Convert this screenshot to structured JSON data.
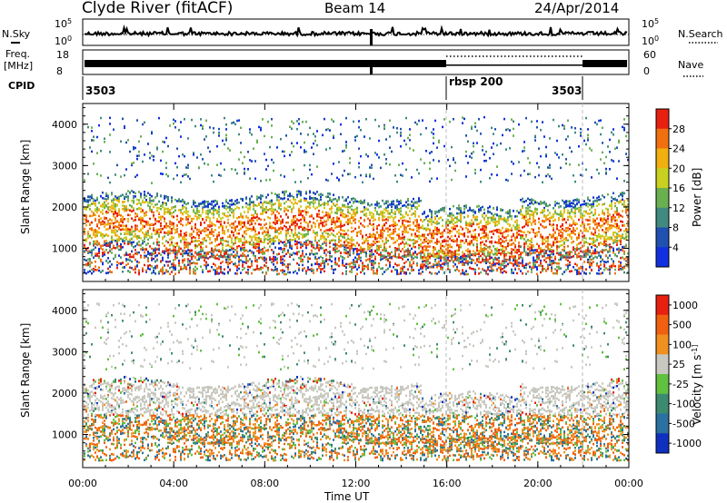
{
  "header": {
    "station": "Clyde River (fitACF)",
    "beam": "Beam 14",
    "date": "24/Apr/2014"
  },
  "nsky_panel": {
    "label": "N.Sky",
    "right_label": "N.Search",
    "ticks_left": [
      "10^5",
      "10^0"
    ],
    "ticks_right": [
      "10^5",
      "10^0"
    ]
  },
  "freq_panel": {
    "label_line1": "Freq.",
    "label_line2": "[MHz]",
    "right_label": "Nave",
    "ticks_left": [
      "18",
      "8"
    ],
    "ticks_right": [
      "60",
      "0"
    ]
  },
  "cpid": {
    "label": "CPID",
    "segments": [
      "3503",
      "rbsp 200",
      "3503"
    ]
  },
  "chart_data": [
    {
      "type": "heatmap",
      "title": "",
      "ylabel": "Slant Range [km]",
      "yticks": [
        "1000",
        "2000",
        "3000",
        "4000"
      ],
      "colorbar_label": "Power [dB]",
      "colorbar_ticks": [
        "4",
        "8",
        "12",
        "16",
        "20",
        "24",
        "28"
      ],
      "colorbar_colors": [
        "#1030e0",
        "#2050b0",
        "#408a80",
        "#6ab050",
        "#c8d020",
        "#f0b010",
        "#f07010",
        "#e82010"
      ]
    },
    {
      "type": "heatmap",
      "title": "",
      "ylabel": "Slant Range [km]",
      "yticks": [
        "1000",
        "2000",
        "3000",
        "4000"
      ],
      "xlabel": "Time UT",
      "xticks": [
        "00:00",
        "04:00",
        "08:00",
        "12:00",
        "16:00",
        "20:00",
        "00:00"
      ],
      "colorbar_label": "Velocity [m s^-1]",
      "colorbar_ticks": [
        "1000",
        "500",
        "100",
        "25",
        "-25",
        "-100",
        "-500",
        "-1000"
      ],
      "colorbar_colors": [
        "#1030c0",
        "#2a70a0",
        "#3c8a70",
        "#60c040",
        "#c8c8c0",
        "#f09020",
        "#f06010",
        "#e82010"
      ]
    }
  ]
}
